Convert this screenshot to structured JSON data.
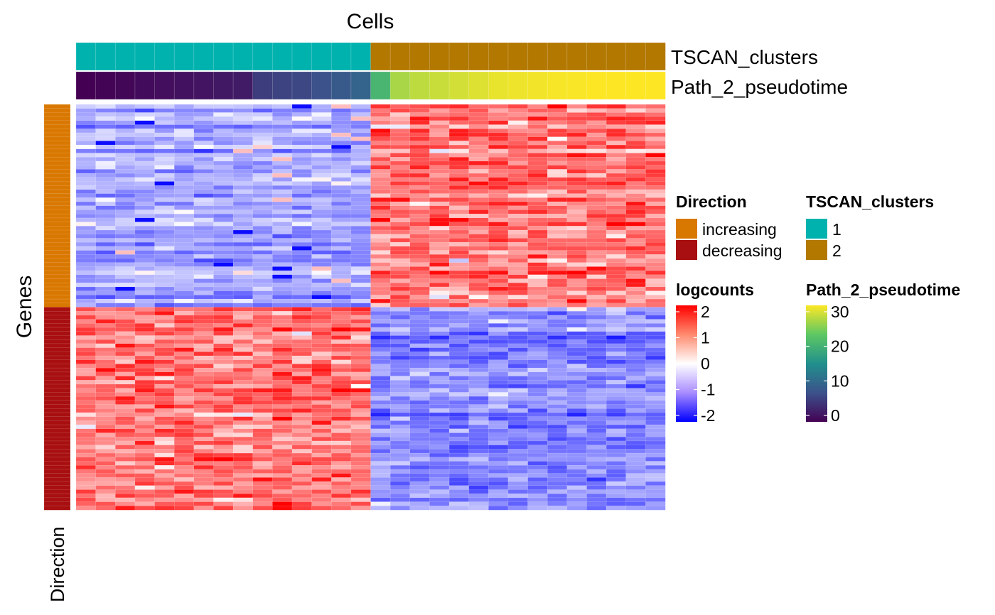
{
  "chart_data": {
    "type": "heatmap",
    "title": "Cells",
    "ylabel": "Genes",
    "n_rows": 100,
    "n_cols": 30,
    "row_annotation": {
      "name": "Direction",
      "groups": [
        {
          "label": "increasing",
          "count": 50,
          "color": "#D97800"
        },
        {
          "label": "decreasing",
          "count": 50,
          "color": "#A80F10"
        }
      ]
    },
    "column_annotations": [
      {
        "name": "TSCAN_clusters",
        "type": "categorical",
        "values": [
          1,
          1,
          1,
          1,
          1,
          1,
          1,
          1,
          1,
          1,
          1,
          1,
          1,
          1,
          1,
          2,
          2,
          2,
          2,
          2,
          2,
          2,
          2,
          2,
          2,
          2,
          2,
          2,
          2,
          2
        ],
        "levels": [
          {
            "label": "1",
            "color": "#00B2AE"
          },
          {
            "label": "2",
            "color": "#B37800"
          }
        ]
      },
      {
        "name": "Path_2_pseudotime",
        "type": "continuous",
        "values": [
          0,
          0.3,
          0.6,
          0.9,
          1.2,
          1.5,
          1.8,
          2.1,
          2.4,
          5.5,
          6.0,
          6.5,
          7.5,
          8.5,
          9.5,
          20,
          26,
          27,
          27.5,
          28,
          28.5,
          29,
          29.3,
          29.5,
          29.7,
          29.8,
          30,
          30,
          30,
          30
        ],
        "range": [
          0,
          30
        ],
        "ticks": [
          "30",
          "20",
          "10",
          "0"
        ],
        "colors": [
          "#440154",
          "#3B528B",
          "#21908C",
          "#5DC863",
          "#FDE725"
        ]
      }
    ],
    "heatmap_scale": {
      "name": "logcounts",
      "range": [
        -2,
        2
      ],
      "ticks": [
        "2",
        "1",
        "0",
        "-1",
        "-2"
      ],
      "colors": {
        "low": "#0000FF",
        "mid": "#FFFFFF",
        "high": "#FF0000"
      }
    },
    "pattern": {
      "increasing_genes": {
        "cluster_1_mean": -0.6,
        "cluster_2_mean": 1.0
      },
      "decreasing_genes": {
        "cluster_1_mean": 1.0,
        "cluster_2_mean": -0.85
      }
    }
  },
  "legends": {
    "direction_title": "Direction",
    "tscan_title": "TSCAN_clusters",
    "logcounts_title": "logcounts",
    "pseudotime_title": "Path_2_pseudotime"
  },
  "labels": {
    "top": "Cells",
    "left": "Genes",
    "bottom": "Direction",
    "anno1": "TSCAN_clusters",
    "anno2": "Path_2_pseudotime"
  }
}
